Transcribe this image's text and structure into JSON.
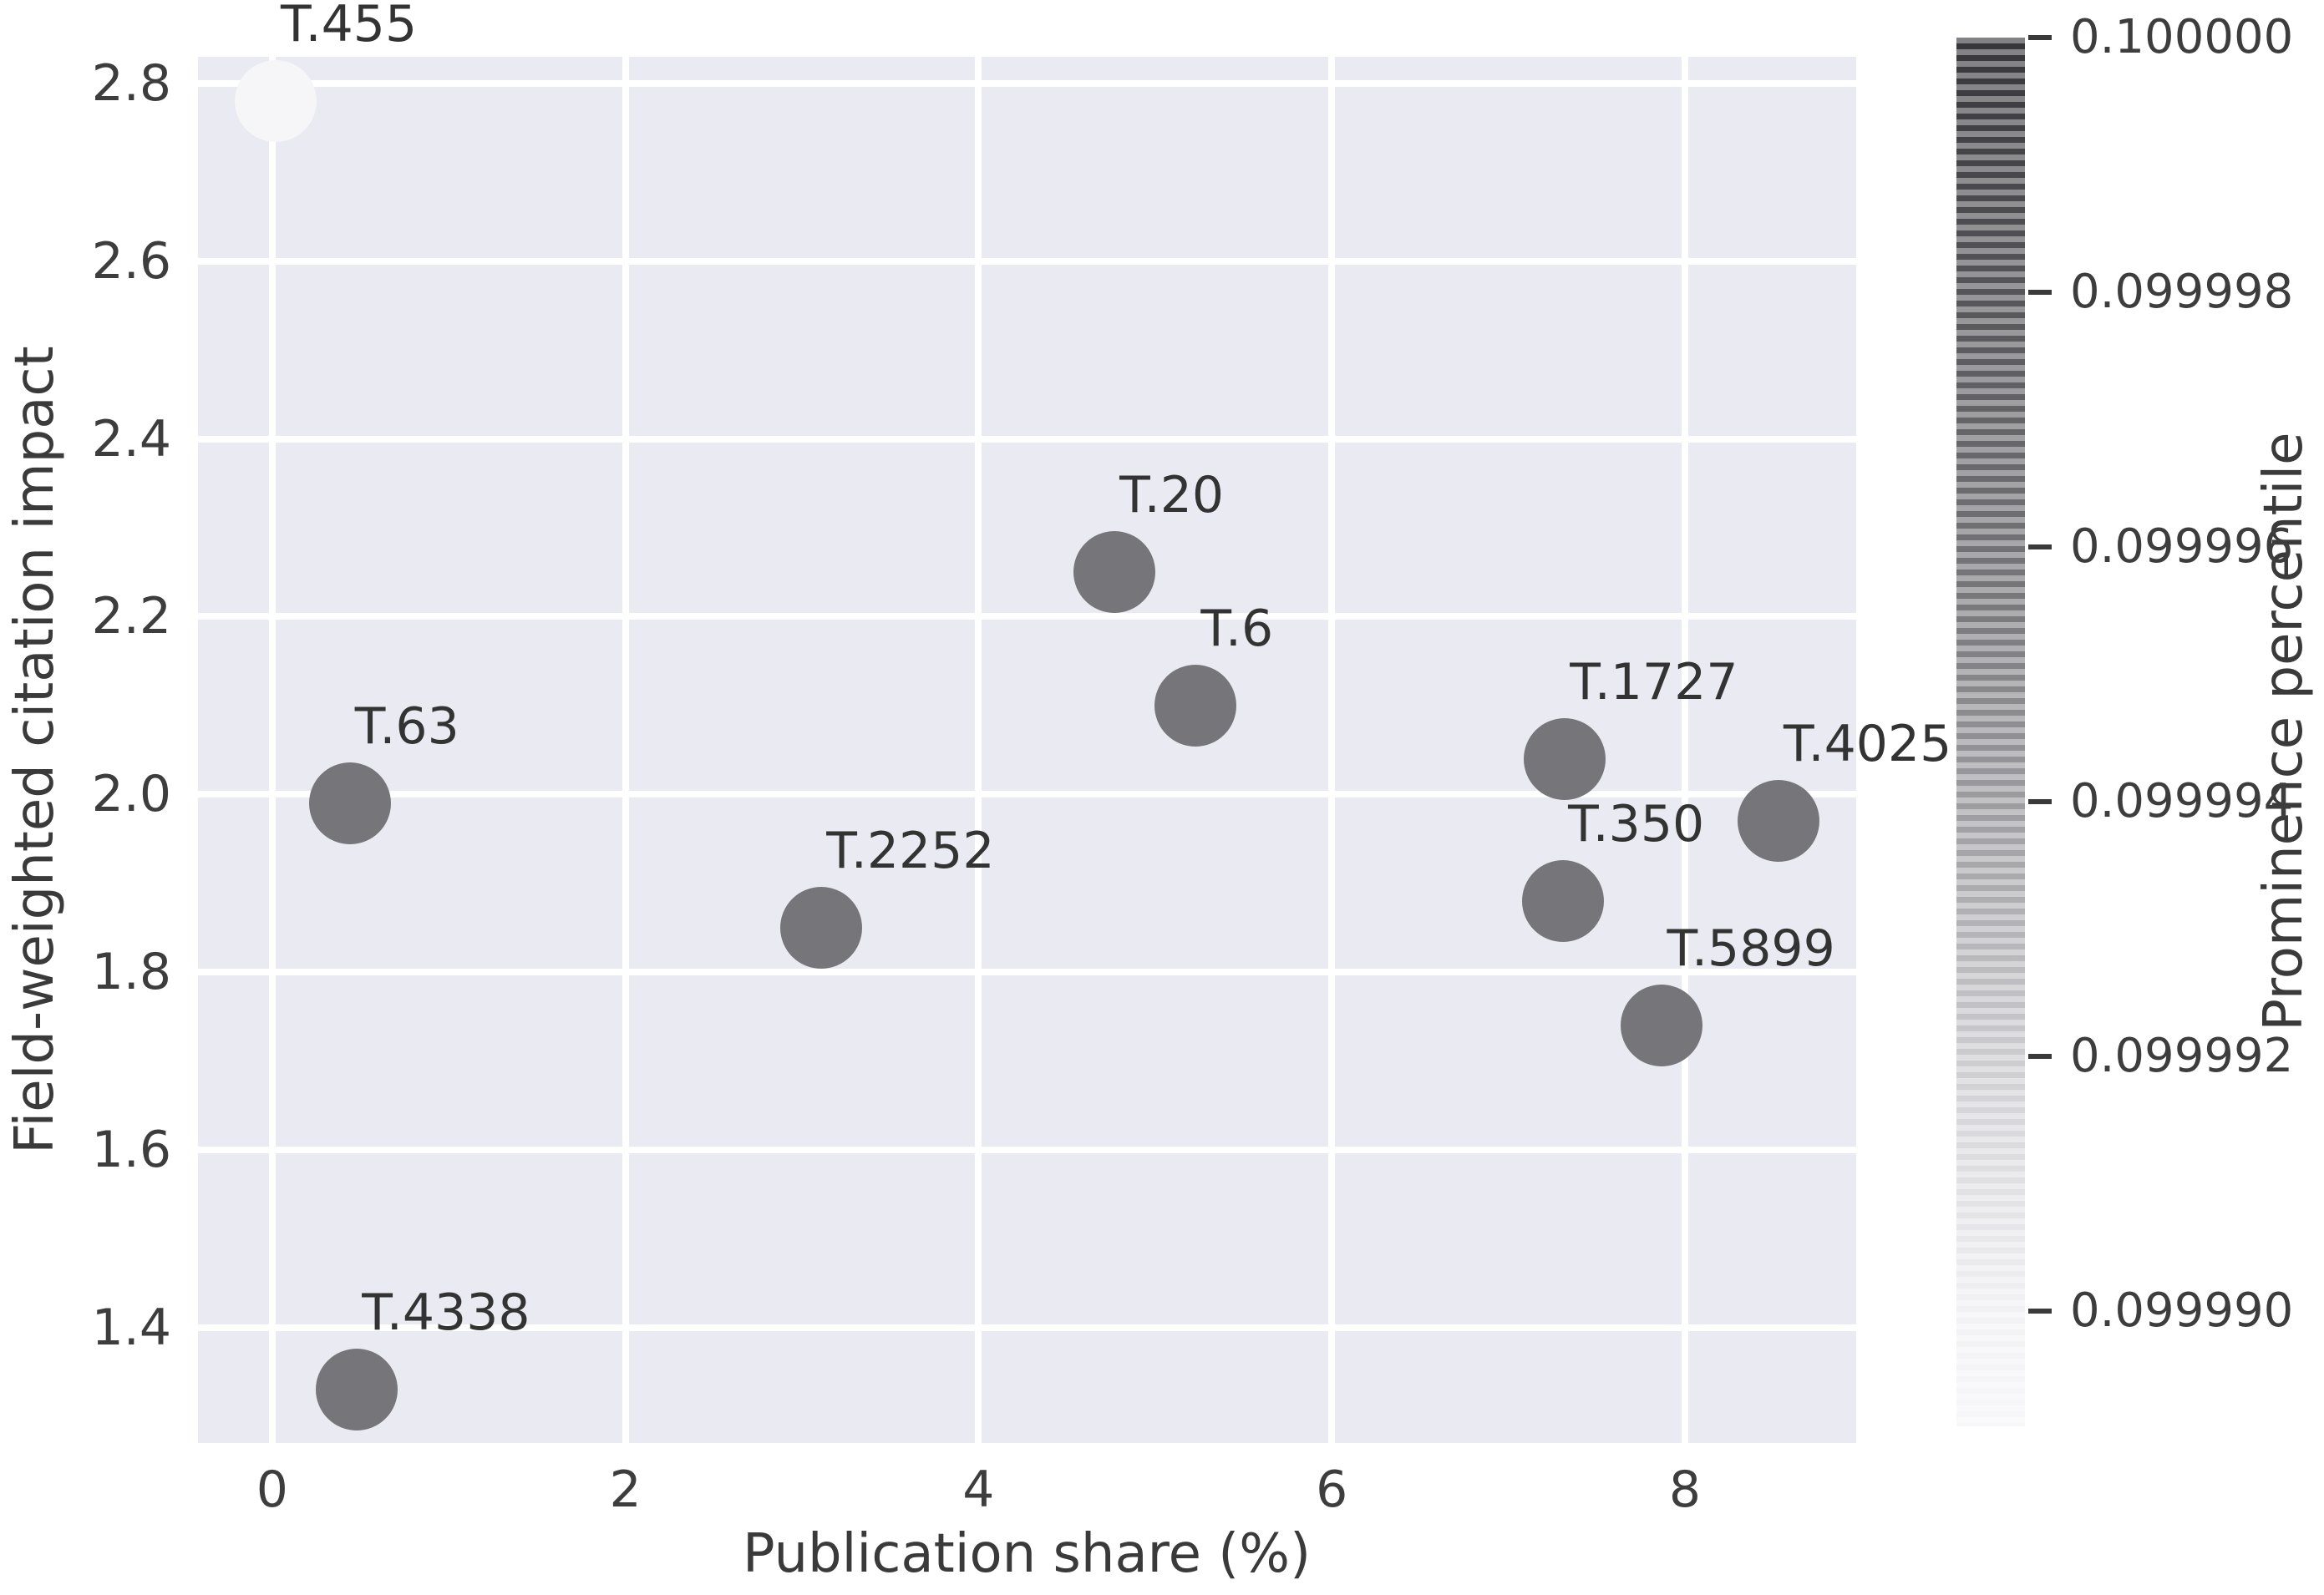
{
  "chart_data": {
    "type": "scatter",
    "title": "",
    "xlabel": "Publication share (%)",
    "ylabel": "Field-weighted citation impact",
    "xlim": [
      -0.42,
      8.97
    ],
    "ylim": [
      1.27,
      2.83
    ],
    "grid": true,
    "xticks": [
      {
        "value": 0,
        "label": "0"
      },
      {
        "value": 2,
        "label": "2"
      },
      {
        "value": 4,
        "label": "4"
      },
      {
        "value": 6,
        "label": "6"
      },
      {
        "value": 8,
        "label": "8"
      }
    ],
    "yticks": [
      {
        "value": 1.4,
        "label": "1.4"
      },
      {
        "value": 1.6,
        "label": "1.6"
      },
      {
        "value": 1.8,
        "label": "1.8"
      },
      {
        "value": 2.0,
        "label": "2.0"
      },
      {
        "value": 2.2,
        "label": "2.2"
      },
      {
        "value": 2.4,
        "label": "2.4"
      },
      {
        "value": 2.6,
        "label": "2.6"
      },
      {
        "value": 2.8,
        "label": "2.8"
      }
    ],
    "points": [
      {
        "label": "T.455",
        "x": 0.02,
        "y": 2.78,
        "color": "#f6f6f8"
      },
      {
        "label": "T.63",
        "x": 0.44,
        "y": 1.99,
        "color": "#76767a"
      },
      {
        "label": "T.4338",
        "x": 0.48,
        "y": 1.33,
        "color": "#76767a"
      },
      {
        "label": "T.2252",
        "x": 3.11,
        "y": 1.85,
        "color": "#76767a"
      },
      {
        "label": "T.20",
        "x": 4.77,
        "y": 2.25,
        "color": "#76767a"
      },
      {
        "label": "T.6",
        "x": 5.23,
        "y": 2.1,
        "color": "#76767a"
      },
      {
        "label": "T.1727",
        "x": 7.32,
        "y": 2.04,
        "color": "#76767a"
      },
      {
        "label": "T.350",
        "x": 7.31,
        "y": 1.88,
        "color": "#76767a"
      },
      {
        "label": "T.5899",
        "x": 7.87,
        "y": 1.74,
        "color": "#76767a"
      },
      {
        "label": "T.4025",
        "x": 8.53,
        "y": 1.97,
        "color": "#76767a"
      }
    ],
    "colorbar": {
      "label": "Prominence percentile",
      "ticks": [
        "0.100000",
        "0.099998",
        "0.099996",
        "0.099994",
        "0.099992",
        "0.099990"
      ],
      "top_color": "#36363b",
      "bottom_color": "#f7f7f9",
      "banded": true
    },
    "legend_position": "right-colorbar",
    "colors": {
      "plot_background": "#e9eaf2",
      "figure_background": "#ffffff",
      "gridline": "#ffffff",
      "marker_default": "#76767a",
      "text": "#3a3a3a"
    }
  }
}
